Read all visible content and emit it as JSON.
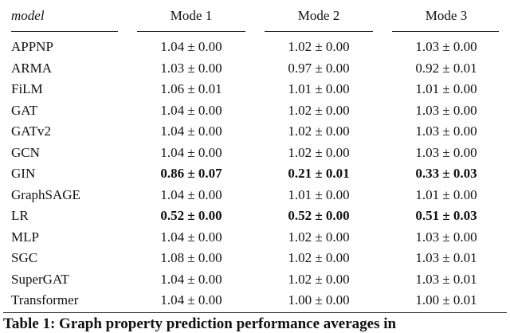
{
  "table": {
    "header": [
      "model",
      "Mode 1",
      "Mode 2",
      "Mode 3"
    ],
    "rows": [
      {
        "cells": [
          "APPNP",
          "1.04 ± 0.00",
          "1.02 ± 0.00",
          "1.03 ± 0.00"
        ],
        "bold": false
      },
      {
        "cells": [
          "ARMA",
          "1.03 ± 0.00",
          "0.97 ± 0.00",
          "0.92 ± 0.01"
        ],
        "bold": false
      },
      {
        "cells": [
          "FiLM",
          "1.06 ± 0.01",
          "1.01 ± 0.00",
          "1.01 ± 0.00"
        ],
        "bold": false
      },
      {
        "cells": [
          "GAT",
          "1.04 ± 0.00",
          "1.02 ± 0.00",
          "1.03 ± 0.00"
        ],
        "bold": false
      },
      {
        "cells": [
          "GATv2",
          "1.04 ± 0.00",
          "1.02 ± 0.00",
          "1.03 ± 0.00"
        ],
        "bold": false
      },
      {
        "cells": [
          "GCN",
          "1.04 ± 0.00",
          "1.02 ± 0.00",
          "1.03 ± 0.00"
        ],
        "bold": false
      },
      {
        "cells": [
          "GIN",
          "0.86 ± 0.07",
          "0.21 ± 0.01",
          "0.33 ± 0.03"
        ],
        "bold": true
      },
      {
        "cells": [
          "GraphSAGE",
          "1.04 ± 0.00",
          "1.01 ± 0.00",
          "1.01 ± 0.00"
        ],
        "bold": false
      },
      {
        "cells": [
          "LR",
          "0.52 ± 0.00",
          "0.52 ± 0.00",
          "0.51 ± 0.03"
        ],
        "bold": true
      },
      {
        "cells": [
          "MLP",
          "1.04 ± 0.00",
          "1.02 ± 0.00",
          "1.03 ± 0.00"
        ],
        "bold": false
      },
      {
        "cells": [
          "SGC",
          "1.08 ± 0.00",
          "1.02 ± 0.00",
          "1.03 ± 0.01"
        ],
        "bold": false
      },
      {
        "cells": [
          "SuperGAT",
          "1.04 ± 0.00",
          "1.02 ± 0.00",
          "1.03 ± 0.01"
        ],
        "bold": false
      },
      {
        "cells": [
          "Transformer",
          "1.04 ± 0.00",
          "1.00 ± 0.00",
          "1.00 ± 0.01"
        ],
        "bold": false
      }
    ],
    "caption": "Table 1: Graph property prediction performance averages in"
  }
}
